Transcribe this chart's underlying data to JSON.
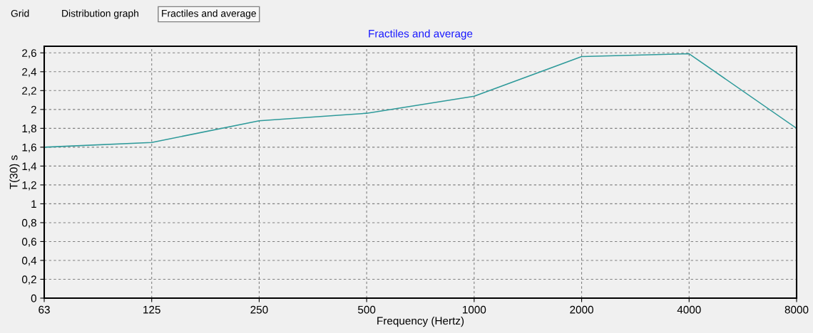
{
  "chart_data": {
    "type": "line",
    "title": "Fractiles and average",
    "xlabel": "Frequency (Hertz)",
    "ylabel": "T(30) s",
    "annotations": [
      "Grid",
      "Distribution graph",
      "Fractiles and average"
    ],
    "categories": [
      "63",
      "125",
      "250",
      "500",
      "1000",
      "2000",
      "4000",
      "8000"
    ],
    "series": [
      {
        "color": "#2e9a9a",
        "values": [
          1.6,
          1.65,
          1.88,
          1.96,
          2.14,
          2.56,
          2.59,
          1.8
        ]
      }
    ],
    "ylim": [
      0,
      2.67
    ],
    "yticks": [
      0,
      {
        "value": 0.2,
        "label": "0,2"
      },
      {
        "value": 0.4,
        "label": "0,4"
      },
      {
        "value": 0.6,
        "label": "0,6"
      },
      {
        "value": 0.8,
        "label": "0,8"
      },
      1,
      {
        "value": 1.2,
        "label": "1,2"
      },
      {
        "value": 1.4,
        "label": "1,4"
      },
      {
        "value": 1.6,
        "label": "1,6"
      },
      {
        "value": 1.8,
        "label": "1,8"
      },
      2,
      {
        "value": 2.2,
        "label": "2,2"
      },
      {
        "value": 2.4,
        "label": "2,4"
      },
      {
        "value": 2.6,
        "label": "2,6"
      }
    ],
    "grid": true,
    "marker": "none"
  }
}
